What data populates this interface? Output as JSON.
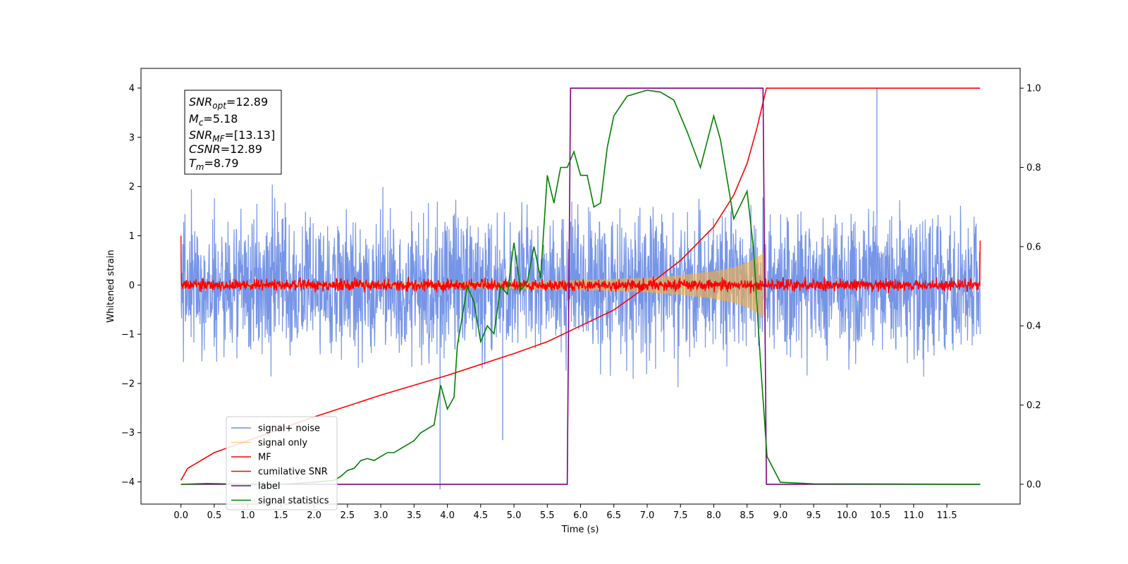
{
  "chart_data": {
    "type": "line",
    "xlabel": "Time (s)",
    "ylabel": "Whitened strain",
    "xlim": [
      -0.6,
      12.6
    ],
    "ylim": [
      -4.45,
      4.4
    ],
    "y2lim": [
      -0.05,
      1.05
    ],
    "grid": false,
    "legend_position": "lower-left",
    "xticks": [
      0.0,
      0.5,
      1.0,
      1.5,
      2.0,
      2.5,
      3.0,
      3.5,
      4.0,
      4.5,
      5.0,
      5.5,
      6.0,
      6.5,
      7.0,
      7.5,
      8.0,
      8.5,
      9.0,
      9.5,
      10.0,
      10.5,
      11.0,
      11.5
    ],
    "xtick_labels": [
      "0.0",
      "0.5",
      "1.0",
      "1.5",
      "2.0",
      "2.5",
      "3.0",
      "3.5",
      "4.0",
      "4.5",
      "5.0",
      "5.5",
      "6.0",
      "6.5",
      "7.0",
      "7.5",
      "8.0",
      "8.5",
      "9.0",
      "9.5",
      "10.0",
      "10.5",
      "11.0",
      "11.5"
    ],
    "yticks": [
      -4,
      -3,
      -2,
      -1,
      0,
      1,
      2,
      3,
      4
    ],
    "ytick_labels": [
      "−4",
      "−3",
      "−2",
      "−1",
      "0",
      "1",
      "2",
      "3",
      "4"
    ],
    "y2ticks": [
      0.0,
      0.2,
      0.4,
      0.6,
      0.8,
      1.0
    ],
    "y2tick_labels": [
      "0.0",
      "0.2",
      "0.4",
      "0.6",
      "0.8",
      "1.0"
    ],
    "stats": {
      "snr_opt": {
        "sym": "SNR",
        "sub": "opt",
        "value": "=12.89"
      },
      "mc": {
        "sym": "M",
        "sub": "c",
        "value": "=5.18"
      },
      "snr_mf": {
        "sym": "SNR",
        "sub": "MF",
        "value": "=[13.13]"
      },
      "csnr": {
        "sym": "CSNR",
        "sub": "",
        "value": "=12.89"
      },
      "tm": {
        "sym": "T",
        "sub": "m",
        "value": "=8.79"
      }
    },
    "series": [
      {
        "name": "signal+ noise",
        "color": "#6f8fe6",
        "axis": "left",
        "noise_std": 0.72,
        "range": [
          0.0,
          12.0
        ],
        "spikes": [
          {
            "x": 3.89,
            "y": -4.15
          },
          {
            "x": 10.45,
            "y": 4.0
          },
          {
            "x": 4.83,
            "y": -3.15
          }
        ]
      },
      {
        "name": "signal only",
        "color": "#f5b041",
        "axis": "left",
        "envelope": [
          [
            0.0,
            0.04
          ],
          [
            1.0,
            0.045
          ],
          [
            2.0,
            0.05
          ],
          [
            3.0,
            0.055
          ],
          [
            4.0,
            0.065
          ],
          [
            5.0,
            0.08
          ],
          [
            6.0,
            0.1
          ],
          [
            6.5,
            0.12
          ],
          [
            7.0,
            0.15
          ],
          [
            7.5,
            0.2
          ],
          [
            8.0,
            0.28
          ],
          [
            8.3,
            0.36
          ],
          [
            8.5,
            0.45
          ],
          [
            8.65,
            0.56
          ],
          [
            8.75,
            0.66
          ]
        ],
        "end": 8.79
      },
      {
        "name": "MF",
        "color": "#ff0000",
        "axis": "left",
        "noise_std": 0.06,
        "start_value": 1.0,
        "end_value": 0.9,
        "range": [
          0.0,
          12.0
        ]
      },
      {
        "name": "cumilative SNR",
        "color": "#ff0000",
        "axis": "right",
        "points": [
          [
            0.0,
            0.01
          ],
          [
            0.1,
            0.04
          ],
          [
            0.5,
            0.08
          ],
          [
            1.0,
            0.11
          ],
          [
            2.0,
            0.17
          ],
          [
            3.0,
            0.225
          ],
          [
            4.0,
            0.275
          ],
          [
            5.0,
            0.33
          ],
          [
            5.5,
            0.36
          ],
          [
            6.0,
            0.4
          ],
          [
            6.5,
            0.44
          ],
          [
            7.0,
            0.5
          ],
          [
            7.5,
            0.565
          ],
          [
            8.0,
            0.65
          ],
          [
            8.3,
            0.73
          ],
          [
            8.5,
            0.81
          ],
          [
            8.65,
            0.9
          ],
          [
            8.79,
            1.0
          ],
          [
            12.0,
            1.0
          ]
        ]
      },
      {
        "name": "label",
        "color": "#800080",
        "axis": "right",
        "points": [
          [
            0.0,
            0.0
          ],
          [
            5.8,
            0.0
          ],
          [
            5.85,
            1.0
          ],
          [
            8.74,
            1.0
          ],
          [
            8.79,
            0.0
          ],
          [
            12.0,
            0.0
          ]
        ]
      },
      {
        "name": "signal statistics",
        "color": "#008000",
        "axis": "right",
        "points": [
          [
            0.0,
            0.0
          ],
          [
            0.4,
            0.002
          ],
          [
            1.0,
            0.0
          ],
          [
            1.5,
            0.0
          ],
          [
            2.0,
            0.005
          ],
          [
            2.3,
            0.01
          ],
          [
            2.4,
            0.02
          ],
          [
            2.5,
            0.035
          ],
          [
            2.6,
            0.04
          ],
          [
            2.7,
            0.06
          ],
          [
            2.8,
            0.065
          ],
          [
            2.9,
            0.06
          ],
          [
            3.0,
            0.07
          ],
          [
            3.1,
            0.08
          ],
          [
            3.2,
            0.08
          ],
          [
            3.3,
            0.09
          ],
          [
            3.4,
            0.1
          ],
          [
            3.5,
            0.11
          ],
          [
            3.6,
            0.13
          ],
          [
            3.7,
            0.14
          ],
          [
            3.8,
            0.15
          ],
          [
            3.9,
            0.25
          ],
          [
            4.0,
            0.19
          ],
          [
            4.1,
            0.22
          ],
          [
            4.15,
            0.35
          ],
          [
            4.3,
            0.5
          ],
          [
            4.4,
            0.46
          ],
          [
            4.5,
            0.36
          ],
          [
            4.6,
            0.4
          ],
          [
            4.7,
            0.38
          ],
          [
            4.8,
            0.5
          ],
          [
            4.9,
            0.48
          ],
          [
            5.0,
            0.61
          ],
          [
            5.1,
            0.49
          ],
          [
            5.2,
            0.51
          ],
          [
            5.3,
            0.6
          ],
          [
            5.4,
            0.52
          ],
          [
            5.5,
            0.78
          ],
          [
            5.6,
            0.71
          ],
          [
            5.7,
            0.8
          ],
          [
            5.8,
            0.8
          ],
          [
            5.9,
            0.84
          ],
          [
            6.0,
            0.78
          ],
          [
            6.1,
            0.78
          ],
          [
            6.2,
            0.7
          ],
          [
            6.3,
            0.71
          ],
          [
            6.4,
            0.85
          ],
          [
            6.5,
            0.93
          ],
          [
            6.7,
            0.98
          ],
          [
            7.0,
            0.995
          ],
          [
            7.2,
            0.99
          ],
          [
            7.4,
            0.97
          ],
          [
            7.6,
            0.89
          ],
          [
            7.8,
            0.8
          ],
          [
            8.0,
            0.93
          ],
          [
            8.1,
            0.87
          ],
          [
            8.3,
            0.67
          ],
          [
            8.5,
            0.74
          ],
          [
            8.6,
            0.59
          ],
          [
            8.7,
            0.31
          ],
          [
            8.8,
            0.07
          ],
          [
            9.0,
            0.005
          ],
          [
            9.5,
            0.001
          ],
          [
            12.0,
            0.0
          ]
        ]
      }
    ]
  }
}
